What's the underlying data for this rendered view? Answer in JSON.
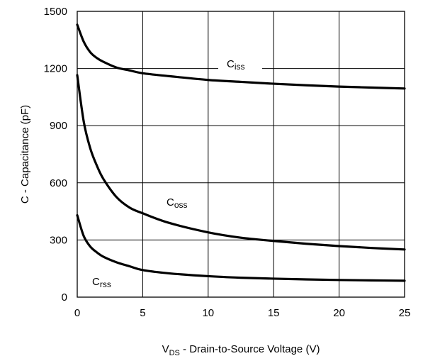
{
  "chart_data": {
    "type": "line",
    "xlabel": {
      "prefix": "V",
      "sub": "DS",
      "rest": " - Drain-to-Source Voltage (V)"
    },
    "ylabel": "C - Capacitance (pF)",
    "xlim": [
      0,
      25
    ],
    "ylim": [
      0,
      1500
    ],
    "xticks": [
      "0",
      "5",
      "10",
      "15",
      "20",
      "25"
    ],
    "yticks": [
      "0",
      "300",
      "600",
      "900",
      "1200",
      "1500"
    ],
    "grid": true,
    "series": [
      {
        "name": "Ciss",
        "label_main": "C",
        "label_sub": "iss",
        "x": [
          0,
          0.5,
          1,
          1.5,
          2,
          3,
          4,
          5,
          7,
          10,
          12.5,
          15,
          17.5,
          20,
          22.5,
          25
        ],
        "y": [
          1430,
          1340,
          1285,
          1255,
          1235,
          1205,
          1190,
          1175,
          1160,
          1140,
          1130,
          1120,
          1112,
          1105,
          1100,
          1095
        ]
      },
      {
        "name": "Coss",
        "label_main": "C",
        "label_sub": "oss",
        "x": [
          0,
          0.5,
          1,
          1.5,
          2,
          3,
          4,
          5,
          7,
          10,
          12.5,
          15,
          17.5,
          20,
          22.5,
          25
        ],
        "y": [
          1165,
          920,
          780,
          690,
          620,
          525,
          470,
          440,
          390,
          340,
          312,
          295,
          280,
          268,
          258,
          250
        ]
      },
      {
        "name": "Crss",
        "label_main": "C",
        "label_sub": "rss",
        "x": [
          0,
          0.5,
          1,
          1.5,
          2,
          3,
          4,
          5,
          7,
          10,
          12.5,
          15,
          17.5,
          20,
          22.5,
          25
        ],
        "y": [
          430,
          320,
          265,
          235,
          212,
          183,
          162,
          142,
          125,
          110,
          102,
          97,
          93,
          90,
          88,
          86
        ]
      }
    ]
  }
}
